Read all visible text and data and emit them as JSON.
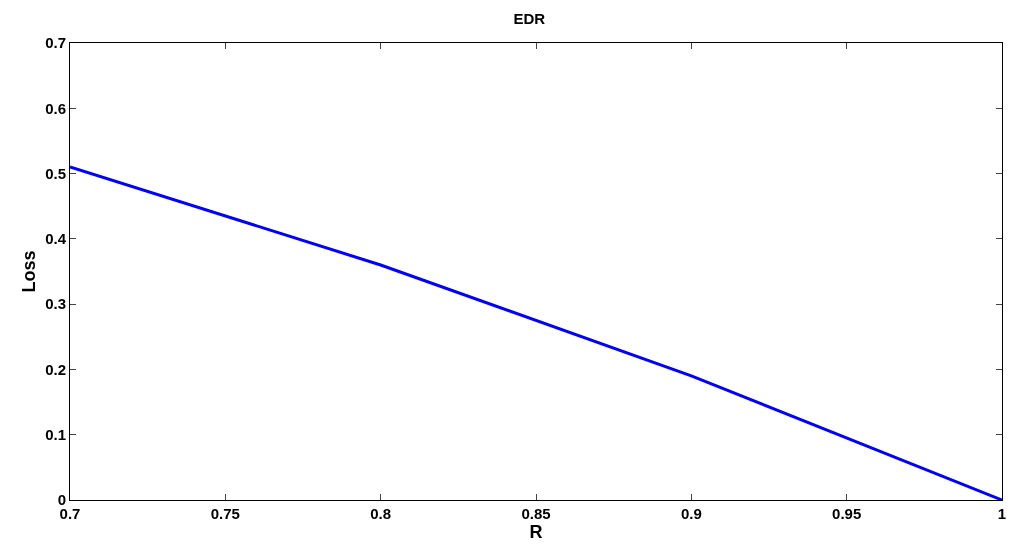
{
  "chart_data": {
    "type": "line",
    "title": "EDR",
    "xlabel": "R",
    "ylabel": "Loss",
    "x": [
      0.7,
      0.8,
      0.9,
      1.0
    ],
    "series": [
      {
        "color": "#0000ff",
        "values": [
          0.51,
          0.36,
          0.19,
          0.0
        ]
      }
    ],
    "xlim": [
      0.7,
      1.0
    ],
    "xticks": [
      0.7,
      0.75,
      0.8,
      0.85,
      0.9,
      0.95,
      1
    ],
    "ylim": [
      0,
      0.7
    ],
    "yticks": [
      0,
      0.1,
      0.2,
      0.3,
      0.4,
      0.5,
      0.6,
      0.7
    ],
    "marker": "none",
    "line_style": "solid"
  }
}
